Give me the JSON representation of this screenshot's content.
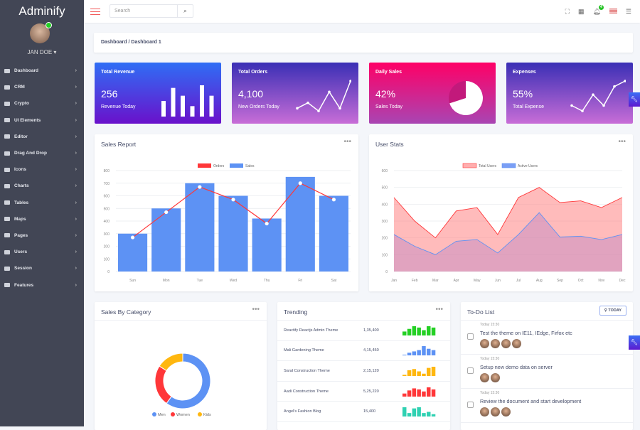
{
  "sidebar": {
    "logo": "Adminify",
    "user": "JAN DOE ▾",
    "items": [
      {
        "label": "Dashboard",
        "icon": "dashboard-icon"
      },
      {
        "label": "CRM",
        "icon": "crm-icon"
      },
      {
        "label": "Crypto",
        "icon": "crypto-icon"
      },
      {
        "label": "UI Elements",
        "icon": "ui-elements-icon"
      },
      {
        "label": "Editor",
        "icon": "pencil-icon"
      },
      {
        "label": "Drag And Drop",
        "icon": "drag-icon"
      },
      {
        "label": "Icons",
        "icon": "icons-icon"
      },
      {
        "label": "Charts",
        "icon": "chart-icon"
      },
      {
        "label": "Tables",
        "icon": "table-icon"
      },
      {
        "label": "Maps",
        "icon": "map-icon"
      },
      {
        "label": "Pages",
        "icon": "pages-icon"
      },
      {
        "label": "Users",
        "icon": "users-icon"
      },
      {
        "label": "Session",
        "icon": "session-icon"
      },
      {
        "label": "Features",
        "icon": "features-icon"
      }
    ]
  },
  "header": {
    "search_placeholder": "Search",
    "notification_count": "4"
  },
  "breadcrumb": "Dashboard / Dashboard 1",
  "stats": [
    {
      "title": "Total Revenue",
      "value": "256",
      "sub": "Revenue Today",
      "bars": [
        3,
        5.5,
        4,
        2,
        6,
        4
      ],
      "gradient": [
        "#2f6ef5",
        "#6a11cb"
      ]
    },
    {
      "title": "Total Orders",
      "value": "4,100",
      "sub": "New Orders Today",
      "line": [
        2,
        4,
        1,
        8,
        2,
        12
      ],
      "gradient": [
        "#3a2fb5",
        "#c86dd7"
      ]
    },
    {
      "title": "Daily Sales",
      "value": "42%",
      "sub": "Sales Today",
      "pie_percent": 70,
      "gradient": [
        "#ff0066",
        "#a945b3"
      ]
    },
    {
      "title": "Expenses",
      "value": "55%",
      "sub": "Total Expense",
      "line": [
        3,
        1,
        7,
        3,
        10,
        12
      ],
      "gradient": [
        "#3a2fb5",
        "#c86dd7"
      ]
    }
  ],
  "sales_report": {
    "title": "Sales Report",
    "chart_data": {
      "type": "bar",
      "categories": [
        "Sun",
        "Mon",
        "Tue",
        "Wed",
        "Thu",
        "Fri",
        "Sat"
      ],
      "series": [
        {
          "name": "Orders",
          "type": "line",
          "color": "#ff3739",
          "values": [
            270,
            470,
            670,
            570,
            380,
            700,
            570
          ]
        },
        {
          "name": "Sales",
          "type": "bar",
          "color": "#5d92f4",
          "values": [
            300,
            500,
            700,
            600,
            420,
            750,
            600
          ]
        }
      ],
      "ylim": [
        0,
        800
      ],
      "yticks": [
        0,
        100,
        200,
        300,
        400,
        500,
        600,
        700,
        800
      ],
      "legend": "top",
      "grid": true
    }
  },
  "user_stats": {
    "title": "User Stats",
    "chart_data": {
      "type": "area",
      "categories": [
        "Jan",
        "Feb",
        "Mar",
        "Apr",
        "May",
        "Jun",
        "Jul",
        "Aug",
        "Sep",
        "Oct",
        "Nov",
        "Dec"
      ],
      "series": [
        {
          "name": "Total Users",
          "color": "#ff3739",
          "values": [
            440,
            300,
            200,
            360,
            380,
            220,
            440,
            500,
            410,
            420,
            380,
            440
          ]
        },
        {
          "name": "Active Users",
          "color": "#5d92f4",
          "values": [
            220,
            150,
            100,
            180,
            190,
            110,
            220,
            350,
            205,
            210,
            190,
            220
          ]
        }
      ],
      "ylim": [
        0,
        600
      ],
      "yticks": [
        0,
        100,
        200,
        300,
        400,
        500,
        600
      ],
      "legend": "top",
      "grid": true
    }
  },
  "sales_by_category": {
    "title": "Sales By Category",
    "chart_data": {
      "type": "pie",
      "labels": [
        "Men",
        "Women",
        "Kids"
      ],
      "values": [
        60,
        24,
        16
      ],
      "colors": [
        "#5d92f4",
        "#ff3739",
        "#ffb70f"
      ],
      "legend": "bottom"
    }
  },
  "trending": {
    "title": "Trending",
    "rows": [
      {
        "name": "Reactify Reactjs Admin Theme",
        "count": "1,35,400",
        "color": "#24d024",
        "bars": [
          3,
          5,
          7,
          6,
          4,
          7,
          6
        ]
      },
      {
        "name": "Mali Gardening Theme",
        "count": "4,15,450",
        "color": "#5d92f4",
        "bars": [
          0.5,
          2,
          3,
          4,
          7,
          5,
          4
        ]
      },
      {
        "name": "Saral Construction Theme",
        "count": "2,15,120",
        "color": "#ffb70f",
        "bars": [
          1,
          5,
          6,
          4,
          2,
          7,
          8
        ]
      },
      {
        "name": "Aadi Construction Theme",
        "count": "5,25,220",
        "color": "#ff3739",
        "bars": [
          3,
          6,
          8,
          7,
          5,
          9,
          7
        ]
      },
      {
        "name": "Angel's Fashion Blog",
        "count": "15,400",
        "color": "#2fd1b2",
        "bars": [
          8,
          3,
          7,
          8,
          3,
          4,
          2
        ]
      }
    ]
  },
  "todo": {
    "title": "To-Do List",
    "filter": "TODAY",
    "items": [
      {
        "time": "Today 15:30",
        "text": "Test the theme on IE11, IEdge, Firfox etc",
        "avatars": 4
      },
      {
        "time": "Today 15:30",
        "text": "Setup new demo data on server",
        "avatars": 2
      },
      {
        "time": "Today 15:30",
        "text": "Review the document and start development",
        "avatars": 3
      }
    ]
  }
}
